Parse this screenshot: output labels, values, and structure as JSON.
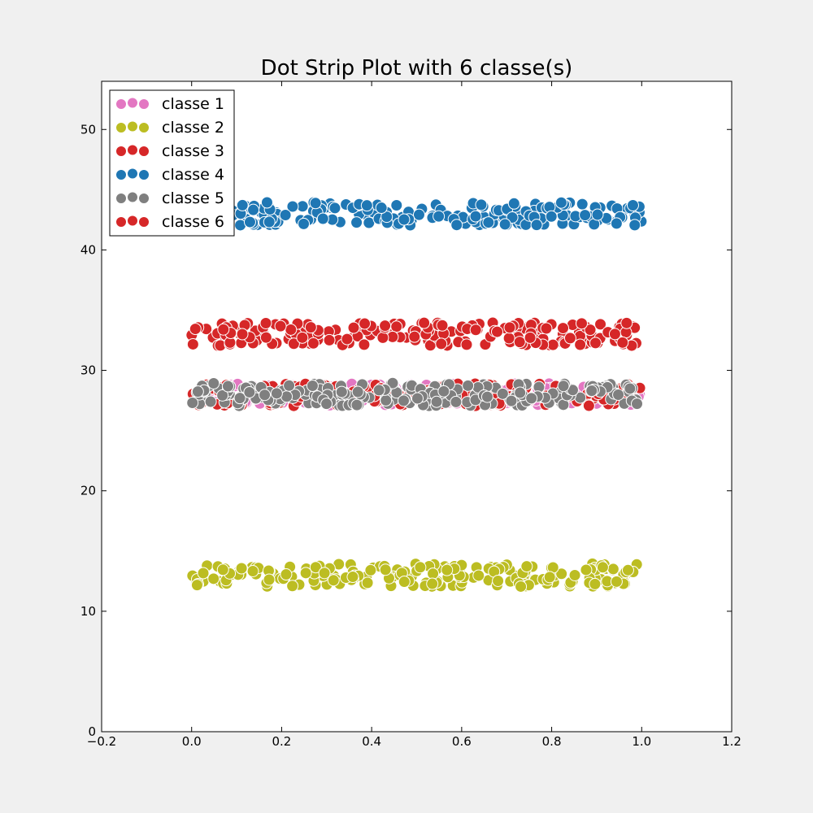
{
  "chart_data": {
    "type": "scatter",
    "title": "Dot Strip Plot with 6 classe(s)",
    "xlabel": "",
    "ylabel": "",
    "xlim": [
      -0.2,
      1.2
    ],
    "ylim": [
      0,
      54
    ],
    "x_ticks": [
      "−0.2",
      "0.0",
      "0.2",
      "0.4",
      "0.6",
      "0.8",
      "1.0",
      "1.2"
    ],
    "y_ticks": [
      "0",
      "10",
      "20",
      "30",
      "40",
      "50"
    ],
    "grid": false,
    "legend_position": "top-left",
    "points_per_class": 200,
    "series": [
      {
        "name": "classe 1",
        "color": "#e377c2",
        "y_center": 28,
        "y_spread": 0.9,
        "x_range": [
          0,
          1
        ]
      },
      {
        "name": "classe 2",
        "color": "#bcbd22",
        "y_center": 13,
        "y_spread": 0.95,
        "x_range": [
          0,
          1
        ]
      },
      {
        "name": "classe 3",
        "color": "#d62728",
        "y_center": 28,
        "y_spread": 0.95,
        "x_range": [
          0,
          1
        ]
      },
      {
        "name": "classe 4",
        "color": "#1f77b4",
        "y_center": 43,
        "y_spread": 0.95,
        "x_range": [
          0,
          1
        ]
      },
      {
        "name": "classe 5",
        "color": "#7f7f7f",
        "y_center": 28,
        "y_spread": 0.95,
        "x_range": [
          0,
          1
        ]
      },
      {
        "name": "classe 6",
        "color": "#d62728",
        "y_center": 33,
        "y_spread": 0.95,
        "x_range": [
          0,
          1
        ]
      }
    ]
  }
}
